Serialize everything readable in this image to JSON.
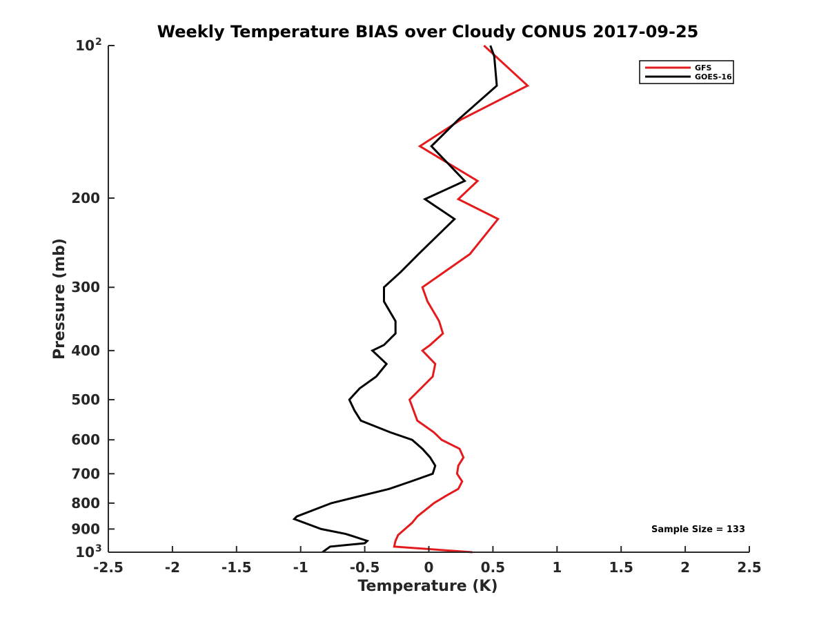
{
  "chart_data": {
    "type": "line",
    "title": "Weekly Temperature BIAS over Cloudy CONUS 2017-09-25",
    "xlabel": "Temperature (K)",
    "ylabel": "Pressure (mb)",
    "xlim": [
      -2.5,
      2.5
    ],
    "ylim": [
      1000,
      100
    ],
    "y_scale": "log",
    "y_reversed": true,
    "grid": false,
    "legend_position": "top-right",
    "x_ticks": [
      {
        "value": -2.5,
        "label": "-2.5"
      },
      {
        "value": -2,
        "label": "-2"
      },
      {
        "value": -1.5,
        "label": "-1.5"
      },
      {
        "value": -1,
        "label": "-1"
      },
      {
        "value": -0.5,
        "label": "-0.5"
      },
      {
        "value": 0,
        "label": "0"
      },
      {
        "value": 0.5,
        "label": "0.5"
      },
      {
        "value": 1,
        "label": "1"
      },
      {
        "value": 1.5,
        "label": "1.5"
      },
      {
        "value": 2,
        "label": "2"
      },
      {
        "value": 2.5,
        "label": "2.5"
      }
    ],
    "y_ticks": [
      {
        "value": 100,
        "label": "10",
        "sup": "2"
      },
      {
        "value": 200,
        "label": "200",
        "sup": ""
      },
      {
        "value": 300,
        "label": "300",
        "sup": ""
      },
      {
        "value": 400,
        "label": "400",
        "sup": ""
      },
      {
        "value": 500,
        "label": "500",
        "sup": ""
      },
      {
        "value": 600,
        "label": "600",
        "sup": ""
      },
      {
        "value": 700,
        "label": "700",
        "sup": ""
      },
      {
        "value": 800,
        "label": "800",
        "sup": ""
      },
      {
        "value": 900,
        "label": "900",
        "sup": ""
      },
      {
        "value": 1000,
        "label": "10",
        "sup": "3"
      }
    ],
    "series": [
      {
        "name": "GFS",
        "color": "#e41a1c",
        "points": [
          {
            "x": 0.43,
            "p": 100
          },
          {
            "x": 0.77,
            "p": 120
          },
          {
            "x": 0.25,
            "p": 140
          },
          {
            "x": -0.07,
            "p": 158
          },
          {
            "x": 0.38,
            "p": 185
          },
          {
            "x": 0.23,
            "p": 201
          },
          {
            "x": 0.54,
            "p": 220
          },
          {
            "x": 0.32,
            "p": 258
          },
          {
            "x": -0.05,
            "p": 300
          },
          {
            "x": -0.01,
            "p": 320
          },
          {
            "x": 0.08,
            "p": 350
          },
          {
            "x": 0.11,
            "p": 370
          },
          {
            "x": 0.01,
            "p": 390
          },
          {
            "x": -0.05,
            "p": 400
          },
          {
            "x": 0.05,
            "p": 425
          },
          {
            "x": 0.03,
            "p": 450
          },
          {
            "x": -0.15,
            "p": 500
          },
          {
            "x": -0.09,
            "p": 550
          },
          {
            "x": 0.04,
            "p": 580
          },
          {
            "x": 0.1,
            "p": 600
          },
          {
            "x": 0.24,
            "p": 625
          },
          {
            "x": 0.27,
            "p": 650
          },
          {
            "x": 0.23,
            "p": 675
          },
          {
            "x": 0.22,
            "p": 700
          },
          {
            "x": 0.26,
            "p": 725
          },
          {
            "x": 0.23,
            "p": 750
          },
          {
            "x": 0.13,
            "p": 775
          },
          {
            "x": 0.04,
            "p": 800
          },
          {
            "x": -0.09,
            "p": 850
          },
          {
            "x": -0.13,
            "p": 875
          },
          {
            "x": -0.24,
            "p": 925
          },
          {
            "x": -0.26,
            "p": 950
          },
          {
            "x": -0.27,
            "p": 975
          },
          {
            "x": 0.34,
            "p": 1000
          }
        ]
      },
      {
        "name": "GOES-16",
        "color": "#000000",
        "points": [
          {
            "x": 0.48,
            "p": 100
          },
          {
            "x": 0.51,
            "p": 105
          },
          {
            "x": 0.53,
            "p": 120
          },
          {
            "x": 0.23,
            "p": 140
          },
          {
            "x": 0.02,
            "p": 158
          },
          {
            "x": 0.28,
            "p": 185
          },
          {
            "x": -0.03,
            "p": 201
          },
          {
            "x": 0.2,
            "p": 220
          },
          {
            "x": -0.08,
            "p": 258
          },
          {
            "x": -0.22,
            "p": 280
          },
          {
            "x": -0.35,
            "p": 300
          },
          {
            "x": -0.35,
            "p": 320
          },
          {
            "x": -0.26,
            "p": 350
          },
          {
            "x": -0.26,
            "p": 370
          },
          {
            "x": -0.35,
            "p": 390
          },
          {
            "x": -0.44,
            "p": 400
          },
          {
            "x": -0.33,
            "p": 425
          },
          {
            "x": -0.41,
            "p": 450
          },
          {
            "x": -0.54,
            "p": 475
          },
          {
            "x": -0.62,
            "p": 500
          },
          {
            "x": -0.58,
            "p": 525
          },
          {
            "x": -0.53,
            "p": 550
          },
          {
            "x": -0.3,
            "p": 580
          },
          {
            "x": -0.13,
            "p": 600
          },
          {
            "x": -0.05,
            "p": 625
          },
          {
            "x": 0.01,
            "p": 650
          },
          {
            "x": 0.05,
            "p": 675
          },
          {
            "x": 0.03,
            "p": 700
          },
          {
            "x": -0.14,
            "p": 725
          },
          {
            "x": -0.31,
            "p": 750
          },
          {
            "x": -0.76,
            "p": 800
          },
          {
            "x": -1.03,
            "p": 850
          },
          {
            "x": -1.05,
            "p": 860
          },
          {
            "x": -0.84,
            "p": 900
          },
          {
            "x": -0.65,
            "p": 920
          },
          {
            "x": -0.59,
            "p": 930
          },
          {
            "x": -0.48,
            "p": 950
          },
          {
            "x": -0.5,
            "p": 960
          },
          {
            "x": -0.77,
            "p": 975
          },
          {
            "x": -0.83,
            "p": 1000
          }
        ]
      }
    ],
    "annotations": [
      {
        "text": "Sample Size = 133"
      }
    ]
  }
}
